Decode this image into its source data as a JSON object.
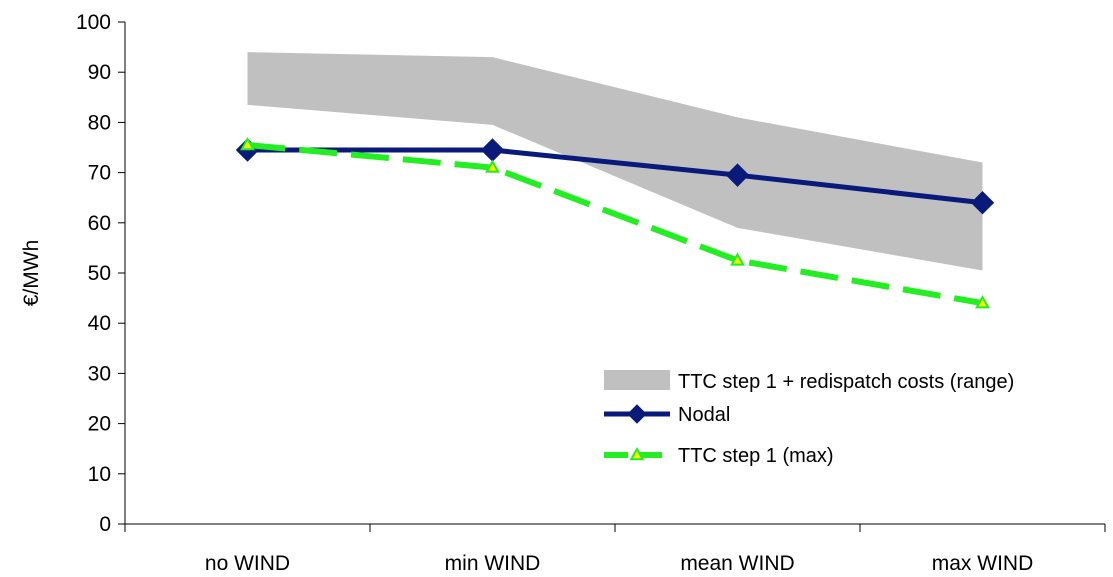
{
  "chart_data": {
    "type": "line",
    "title": "",
    "xlabel": "",
    "ylabel": "€/MWh",
    "ylim": [
      0,
      100
    ],
    "yticks": [
      0,
      10,
      20,
      30,
      40,
      50,
      60,
      70,
      80,
      90,
      100
    ],
    "categories": [
      "no WIND",
      "min WIND",
      "mean WIND",
      "max WIND"
    ],
    "grid": false,
    "legend_position": "bottom-right",
    "band": {
      "name": "TTC step 1 + redispatch costs (range)",
      "upper": [
        94,
        93,
        81,
        72
      ],
      "lower": [
        83.5,
        79.5,
        59,
        50.5
      ],
      "color": "#c0c0c0"
    },
    "series": [
      {
        "name": "Nodal",
        "values": [
          74.5,
          74.5,
          69.5,
          64
        ],
        "color": "#0a1a7a",
        "marker": "diamond",
        "style": "solid"
      },
      {
        "name": "TTC step 1 (max)",
        "values": [
          75.5,
          71,
          52.5,
          44
        ],
        "color": "#22ee22",
        "marker": "triangle",
        "marker_fill": "#f4f400",
        "style": "dashed"
      }
    ]
  }
}
